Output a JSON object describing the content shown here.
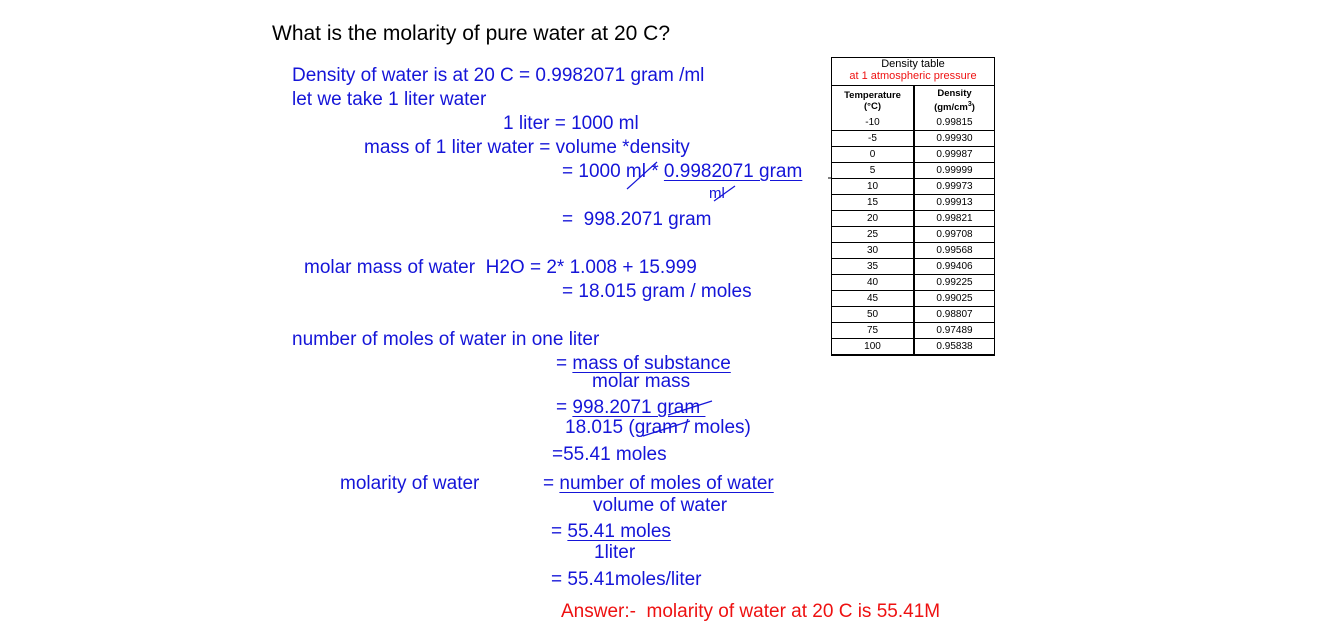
{
  "title": "What is the molarity of pure water at 20 C?",
  "lines": [
    [
      "Density of water is at 20 C = 0.9982071 gram /ml"
    ],
    [
      "let we take 1 liter water"
    ],
    [
      "1 liter = 1000 ml"
    ],
    [
      "mass of 1 liter water = volume *density"
    ],
    [
      "= 1000 ml * ",
      "0.9982071 gram"
    ],
    [
      "ml"
    ],
    [
      "=  998.2071 gram"
    ],
    [
      "molar mass of water  H2O = 2* 1.008 + 15.999"
    ],
    [
      "= 18.015 gram / moles"
    ],
    [
      "number of moles of water in one liter"
    ],
    [
      "= ",
      "mass of substance"
    ],
    [
      "molar mass"
    ],
    [
      "= ",
      "998.2071 gram "
    ],
    [
      "18.015 (gram / moles)"
    ],
    [
      "=55.41 moles"
    ],
    [
      "molarity of water"
    ],
    [
      "= ",
      "number of moles of water"
    ],
    [
      "volume of water"
    ],
    [
      "= ",
      "55.41 moles"
    ],
    [
      "1liter"
    ],
    [
      "= 55.41moles/liter"
    ]
  ],
  "answer": "Answer:-  molarity of water at 20 C is 55.41M",
  "density_table": {
    "title": "Density table",
    "subtitle": "at 1 atmospheric pressure",
    "headers": [
      [
        "Temperature",
        "(°C)"
      ],
      [
        "Density",
        "(gm/cm",
        "3",
        ")"
      ]
    ],
    "rows": [
      [
        "-10",
        "0.99815"
      ],
      [
        "-5",
        "0.99930"
      ],
      [
        "0",
        "0.99987"
      ],
      [
        "5",
        "0.99999"
      ],
      [
        "10",
        "0.99973"
      ],
      [
        "15",
        "0.99913"
      ],
      [
        "20",
        "0.99821"
      ],
      [
        "25",
        "0.99708"
      ],
      [
        "30",
        "0.99568"
      ],
      [
        "35",
        "0.99406"
      ],
      [
        "40",
        "0.99225"
      ],
      [
        "45",
        "0.99025"
      ],
      [
        "50",
        "0.98807"
      ],
      [
        "75",
        "0.97489"
      ],
      [
        "100",
        "0.95838"
      ]
    ]
  }
}
